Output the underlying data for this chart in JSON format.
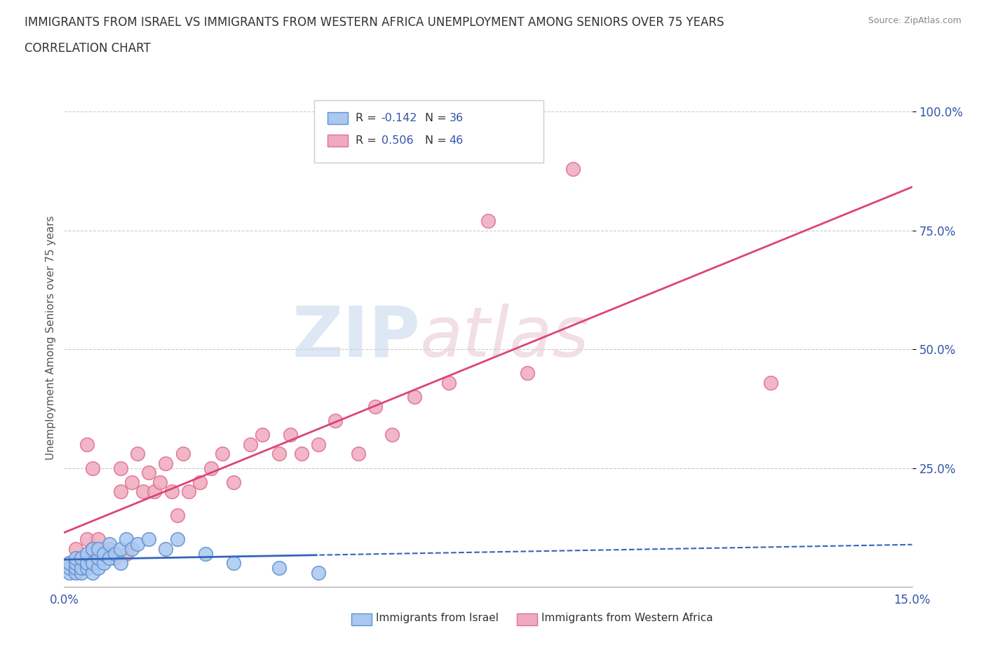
{
  "title_line1": "IMMIGRANTS FROM ISRAEL VS IMMIGRANTS FROM WESTERN AFRICA UNEMPLOYMENT AMONG SENIORS OVER 75 YEARS",
  "title_line2": "CORRELATION CHART",
  "source": "Source: ZipAtlas.com",
  "ylabel": "Unemployment Among Seniors over 75 years",
  "ytick_labels": [
    "100.0%",
    "75.0%",
    "50.0%",
    "25.0%"
  ],
  "ytick_vals": [
    1.0,
    0.75,
    0.5,
    0.25
  ],
  "xmin": 0.0,
  "xmax": 0.15,
  "ymin": 0.0,
  "ymax": 1.05,
  "israel_color": "#aac8f0",
  "israel_edge": "#6090d0",
  "western_africa_color": "#f0aac0",
  "western_africa_edge": "#e07090",
  "trend_israel_color": "#3366bb",
  "trend_western_africa_color": "#dd4477",
  "legend_r_israel": "R = -0.142",
  "legend_n_israel": "N = 36",
  "legend_r_western": "R = 0.506",
  "legend_n_western": "N = 46",
  "israel_R": -0.142,
  "western_R": 0.506,
  "israel_N": 36,
  "western_N": 46,
  "israel_scatter_x": [
    0.001,
    0.001,
    0.001,
    0.002,
    0.002,
    0.002,
    0.002,
    0.003,
    0.003,
    0.003,
    0.004,
    0.004,
    0.004,
    0.005,
    0.005,
    0.005,
    0.006,
    0.006,
    0.006,
    0.007,
    0.007,
    0.008,
    0.008,
    0.009,
    0.01,
    0.01,
    0.011,
    0.012,
    0.013,
    0.015,
    0.018,
    0.02,
    0.025,
    0.03,
    0.038,
    0.045
  ],
  "israel_scatter_y": [
    0.03,
    0.04,
    0.05,
    0.03,
    0.04,
    0.05,
    0.06,
    0.03,
    0.04,
    0.06,
    0.04,
    0.05,
    0.07,
    0.03,
    0.05,
    0.08,
    0.04,
    0.06,
    0.08,
    0.05,
    0.07,
    0.06,
    0.09,
    0.07,
    0.05,
    0.08,
    0.1,
    0.08,
    0.09,
    0.1,
    0.08,
    0.1,
    0.07,
    0.05,
    0.04,
    0.03
  ],
  "western_scatter_x": [
    0.001,
    0.002,
    0.003,
    0.004,
    0.004,
    0.005,
    0.005,
    0.006,
    0.006,
    0.007,
    0.008,
    0.009,
    0.01,
    0.01,
    0.011,
    0.012,
    0.013,
    0.014,
    0.015,
    0.016,
    0.017,
    0.018,
    0.019,
    0.02,
    0.021,
    0.022,
    0.024,
    0.026,
    0.028,
    0.03,
    0.033,
    0.035,
    0.038,
    0.04,
    0.042,
    0.045,
    0.048,
    0.052,
    0.055,
    0.058,
    0.062,
    0.068,
    0.075,
    0.082,
    0.09,
    0.125
  ],
  "western_scatter_y": [
    0.05,
    0.08,
    0.06,
    0.3,
    0.1,
    0.08,
    0.25,
    0.06,
    0.1,
    0.07,
    0.08,
    0.06,
    0.2,
    0.25,
    0.07,
    0.22,
    0.28,
    0.2,
    0.24,
    0.2,
    0.22,
    0.26,
    0.2,
    0.15,
    0.28,
    0.2,
    0.22,
    0.25,
    0.28,
    0.22,
    0.3,
    0.32,
    0.28,
    0.32,
    0.28,
    0.3,
    0.35,
    0.28,
    0.38,
    0.32,
    0.4,
    0.43,
    0.77,
    0.45,
    0.88,
    0.43
  ],
  "watermark_zip": "ZIP",
  "watermark_atlas": "atlas",
  "background_color": "#ffffff",
  "grid_color": "#cccccc",
  "accent_color": "#3355aa"
}
